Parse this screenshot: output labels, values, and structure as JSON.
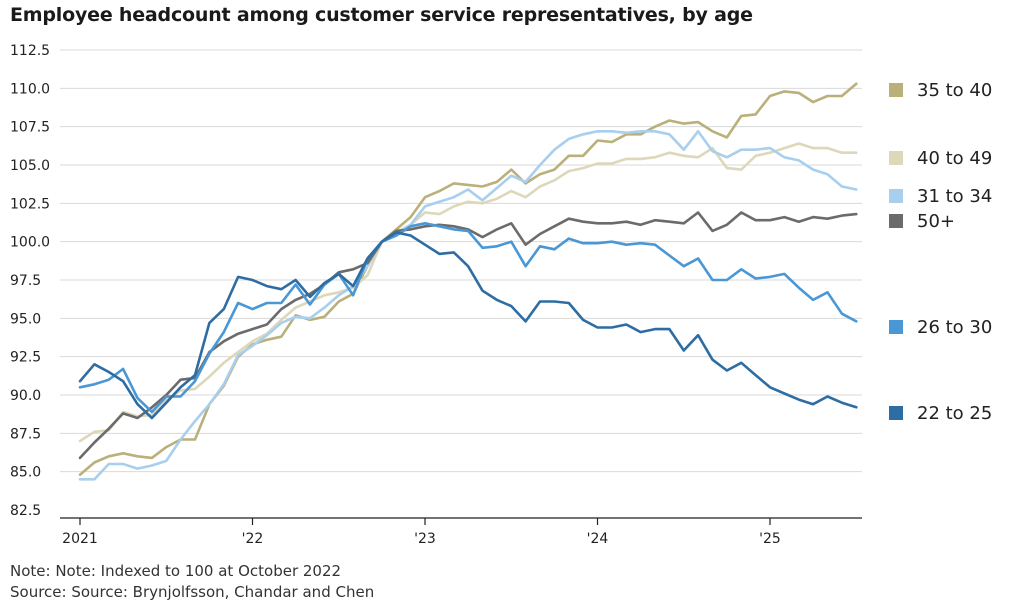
{
  "chart_data": {
    "type": "line",
    "title": "Employee headcount among customer service representatives, by age",
    "note": "Note: Note: Indexed to 100 at October 2022",
    "source": "Source: Source: Brynjolfsson, Chandar and Chen",
    "x_tick_labels": [
      "2021",
      "'22",
      "'23",
      "'24",
      "'25"
    ],
    "y_ticks": [
      82.5,
      85.0,
      87.5,
      90.0,
      92.5,
      95.0,
      97.5,
      100.0,
      102.5,
      105.0,
      107.5,
      110.0,
      112.5
    ],
    "y_tick_labels": [
      "82.5",
      "85.0",
      "87.5",
      "90.0",
      "92.5",
      "95.0",
      "97.5",
      "100.0",
      "102.5",
      "105.0",
      "107.5",
      "110.0",
      "112.5"
    ],
    "ylim": [
      82.5,
      112.5
    ],
    "grid": true,
    "x_start": "2021-01",
    "series": [
      {
        "name": "35 to 40",
        "color": "#b9b07a",
        "values": [
          84.8,
          85.6,
          86.0,
          86.2,
          86.0,
          85.9,
          86.6,
          87.1,
          87.1,
          89.4,
          90.6,
          92.5,
          93.3,
          93.6,
          93.8,
          95.2,
          94.9,
          95.1,
          96.1,
          96.6,
          98.4,
          100.0,
          100.8,
          101.6,
          102.9,
          103.3,
          103.8,
          103.7,
          103.6,
          103.9,
          104.7,
          103.8,
          104.4,
          104.7,
          105.6,
          105.6,
          106.6,
          106.5,
          107.0,
          107.0,
          107.5,
          107.9,
          107.7,
          107.8,
          107.2,
          106.8,
          108.2,
          108.3,
          109.5,
          109.8,
          109.7,
          109.1,
          109.5,
          109.5,
          110.3
        ]
      },
      {
        "name": "40 to 49",
        "color": "#ddd8b9",
        "values": [
          87.0,
          87.6,
          87.7,
          88.9,
          88.6,
          88.7,
          89.7,
          90.3,
          90.4,
          91.2,
          92.1,
          92.8,
          93.5,
          94.0,
          94.9,
          95.7,
          96.1,
          96.5,
          96.7,
          97.0,
          97.8,
          100.0,
          100.6,
          101.1,
          101.9,
          101.8,
          102.3,
          102.6,
          102.5,
          102.8,
          103.3,
          102.9,
          103.6,
          104.0,
          104.6,
          104.8,
          105.1,
          105.1,
          105.4,
          105.4,
          105.5,
          105.8,
          105.6,
          105.5,
          106.1,
          104.8,
          104.7,
          105.6,
          105.8,
          106.1,
          106.4,
          106.1,
          106.1,
          105.8,
          105.8
        ]
      },
      {
        "name": "31 to 34",
        "color": "#a9cfee",
        "values": [
          84.5,
          84.5,
          85.5,
          85.5,
          85.2,
          85.4,
          85.7,
          87.1,
          88.3,
          89.4,
          90.7,
          92.6,
          93.2,
          93.9,
          94.7,
          95.1,
          95.0,
          95.7,
          96.5,
          97.1,
          98.4,
          100.0,
          100.5,
          101.1,
          102.3,
          102.6,
          102.9,
          103.4,
          102.7,
          103.5,
          104.3,
          103.9,
          105.0,
          106.0,
          106.7,
          107.0,
          107.2,
          107.2,
          107.1,
          107.2,
          107.2,
          107.0,
          106.0,
          107.2,
          105.9,
          105.5,
          106.0,
          106.0,
          106.1,
          105.5,
          105.3,
          104.7,
          104.4,
          103.6,
          103.4
        ]
      },
      {
        "name": "50+",
        "color": "#6b6b6b",
        "values": [
          85.9,
          86.9,
          87.8,
          88.8,
          88.5,
          89.2,
          90.0,
          91.0,
          91.1,
          92.8,
          93.5,
          94.0,
          94.3,
          94.6,
          95.6,
          96.2,
          96.6,
          97.2,
          98.0,
          98.2,
          98.6,
          100.0,
          100.7,
          100.8,
          101.0,
          101.1,
          101.0,
          100.8,
          100.3,
          100.8,
          101.2,
          99.8,
          100.5,
          101.0,
          101.5,
          101.3,
          101.2,
          101.2,
          101.3,
          101.1,
          101.4,
          101.3,
          101.2,
          101.9,
          100.7,
          101.1,
          101.9,
          101.4,
          101.4,
          101.6,
          101.3,
          101.6,
          101.5,
          101.7,
          101.8
        ]
      },
      {
        "name": "26 to 30",
        "color": "#4a97d6",
        "values": [
          90.5,
          90.7,
          91.0,
          91.7,
          89.8,
          88.9,
          89.9,
          89.9,
          90.9,
          92.7,
          94.1,
          96.0,
          95.6,
          96.0,
          96.0,
          97.2,
          95.9,
          97.2,
          97.9,
          96.5,
          98.9,
          100.0,
          100.4,
          101.0,
          101.2,
          101.0,
          100.8,
          100.7,
          99.6,
          99.7,
          100.0,
          98.4,
          99.7,
          99.5,
          100.2,
          99.9,
          99.9,
          100.0,
          99.8,
          99.9,
          99.8,
          99.1,
          98.4,
          98.9,
          97.5,
          97.5,
          98.2,
          97.6,
          97.7,
          97.9,
          97.0,
          96.2,
          96.7,
          95.3,
          94.8
        ]
      },
      {
        "name": "22 to 25",
        "color": "#2e6da4",
        "values": [
          90.9,
          92.0,
          91.5,
          90.9,
          89.4,
          88.5,
          89.5,
          90.5,
          91.3,
          94.7,
          95.6,
          97.7,
          97.5,
          97.1,
          96.9,
          97.5,
          96.4,
          97.3,
          97.9,
          97.1,
          98.9,
          100.0,
          100.6,
          100.4,
          99.8,
          99.2,
          99.3,
          98.4,
          96.8,
          96.2,
          95.8,
          94.8,
          96.1,
          96.1,
          96.0,
          94.9,
          94.4,
          94.4,
          94.6,
          94.1,
          94.3,
          94.3,
          92.9,
          93.9,
          92.3,
          91.6,
          92.1,
          91.3,
          90.5,
          90.1,
          89.7,
          89.4,
          89.9,
          89.5,
          89.2
        ]
      }
    ]
  }
}
